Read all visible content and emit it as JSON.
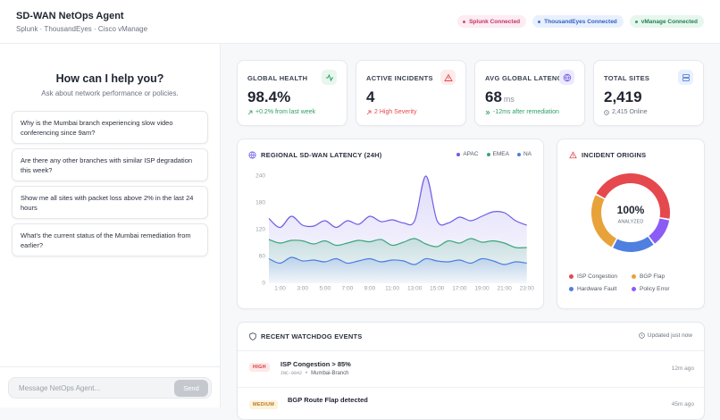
{
  "header": {
    "title": "SD-WAN NetOps Agent",
    "subtitle": "Splunk · ThousandEyes · Cisco vManage",
    "badges": [
      "Splunk Connected",
      "ThousandEyes Connected",
      "vManage Connected"
    ]
  },
  "assistant": {
    "title": "How can I help you?",
    "subtitle": "Ask about network performance or policies.",
    "suggestions": [
      "Why is the Mumbai branch experiencing slow video conferencing since 9am?",
      "Are there any other branches with similar ISP degradation this week?",
      "Show me all sites with packet loss above 2% in the last 24 hours",
      "What's the current status of the Mumbai remediation from earlier?"
    ],
    "input_placeholder": "Message NetOps Agent...",
    "send": "Send"
  },
  "kpis": [
    {
      "label": "GLOBAL HEALTH",
      "value": "98.4%",
      "note": "+0.2% from last week"
    },
    {
      "label": "ACTIVE INCIDENTS",
      "value": "4",
      "note": "2 High Severity"
    },
    {
      "label": "AVG GLOBAL LATENCY",
      "value": "68",
      "unit": "ms",
      "note": "-12ms after remediation"
    },
    {
      "label": "TOTAL SITES",
      "value": "2,419",
      "note": "2,415 Online"
    }
  ],
  "chart_data": [
    {
      "type": "line",
      "title": "REGIONAL SD-WAN LATENCY (24H)",
      "x": [
        0,
        1,
        2,
        3,
        4,
        5,
        6,
        7,
        8,
        9,
        10,
        11,
        12,
        13,
        14,
        15,
        16,
        17,
        18,
        19,
        20,
        21,
        22,
        23
      ],
      "xlim": [
        0,
        23.5
      ],
      "xticks": [
        {
          "value": 1,
          "label": "1:00"
        },
        {
          "value": 3,
          "label": "3:00"
        },
        {
          "value": 5,
          "label": "5:00"
        },
        {
          "value": 7,
          "label": "7:00"
        },
        {
          "value": 9,
          "label": "9:00"
        },
        {
          "value": 11,
          "label": "11:00"
        },
        {
          "value": 13,
          "label": "13:00"
        },
        {
          "value": 15,
          "label": "15:00"
        },
        {
          "value": 17,
          "label": "17:00"
        },
        {
          "value": 19,
          "label": "19:00"
        },
        {
          "value": 21,
          "label": "21:00"
        },
        {
          "value": 23,
          "label": "23:00"
        }
      ],
      "ylim": [
        0,
        240
      ],
      "yticks": [
        0,
        60,
        120,
        180,
        240
      ],
      "series": [
        {
          "name": "APAC",
          "color": "#6c5ce7",
          "values": [
            145,
            125,
            150,
            130,
            128,
            140,
            125,
            140,
            132,
            150,
            138,
            142,
            135,
            140,
            240,
            140,
            135,
            148,
            140,
            150,
            160,
            158,
            140,
            130
          ]
        },
        {
          "name": "EMEA",
          "color": "#3aa57a",
          "values": [
            98,
            90,
            96,
            95,
            88,
            95,
            85,
            90,
            96,
            93,
            98,
            85,
            92,
            100,
            88,
            82,
            95,
            90,
            100,
            92,
            95,
            90,
            80,
            80
          ]
        },
        {
          "name": "NA",
          "color": "#4a7fe0",
          "values": [
            55,
            45,
            58,
            50,
            52,
            48,
            55,
            45,
            50,
            55,
            48,
            52,
            50,
            42,
            55,
            50,
            48,
            52,
            45,
            55,
            50,
            42,
            48,
            45
          ]
        }
      ]
    },
    {
      "type": "pie",
      "title": "INCIDENT ORIGINS",
      "center_label": "100%",
      "center_sublabel": "ANALYZED",
      "categories": [
        "ISP Congestion",
        "BGP Flap",
        "Hardware Fault",
        "Policy Error"
      ],
      "values": [
        45,
        25,
        18,
        12
      ],
      "colors": [
        "#e5484d",
        "#e8a23a",
        "#4f7fe0",
        "#8b5cf6"
      ]
    }
  ],
  "events": {
    "title": "RECENT WATCHDOG EVENTS",
    "updated": "Updated just now",
    "items": [
      {
        "severity": "HIGH",
        "title": "ISP Congestion > 85%",
        "id": "INC-0842",
        "site": "Mumbai-Branch",
        "time": "12m ago"
      },
      {
        "severity": "MEDIUM",
        "title": "BGP Route Flap detected",
        "time": "45m ago"
      }
    ]
  }
}
